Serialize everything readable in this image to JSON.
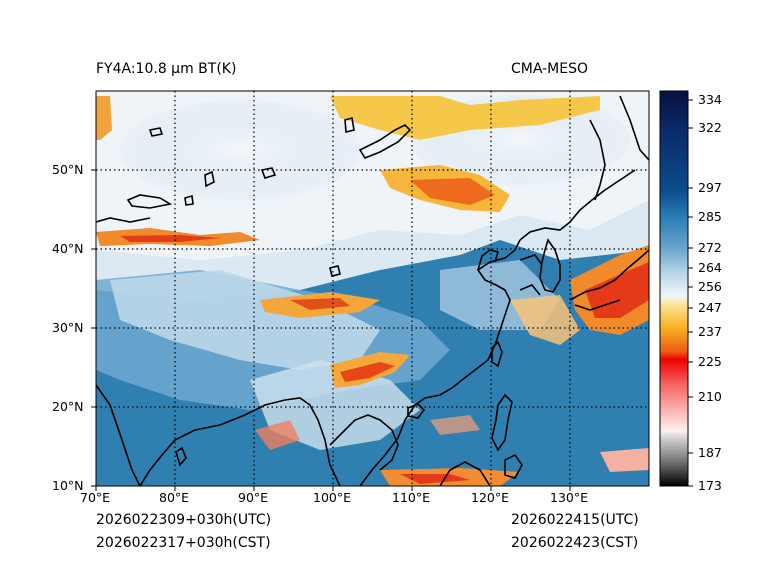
{
  "title_left": "FY4A:10.8 µm BT(K)",
  "title_right": "CMA-MESO",
  "footer": {
    "init_utc": "2026022309+030h(UTC)",
    "init_cst": "2026022317+030h(CST)",
    "valid_utc": "2026022415(UTC)",
    "valid_cst": "2026022423(CST)"
  },
  "axes": {
    "lon_labels": [
      "70°E",
      "80°E",
      "90°E",
      "100°E",
      "110°E",
      "120°E",
      "130°E"
    ],
    "lat_labels": [
      "10°N",
      "20°N",
      "30°N",
      "40°N",
      "50°N"
    ],
    "lon_range": [
      70,
      140
    ],
    "lat_range": [
      10,
      60
    ]
  },
  "colorbar": {
    "labels": [
      "334",
      "322",
      "297",
      "285",
      "272",
      "264",
      "256",
      "247",
      "237",
      "225",
      "210",
      "187",
      "173"
    ],
    "range": [
      173,
      338
    ]
  },
  "colors": {
    "ocean": "#2f7fb0",
    "cloud_white": "#eef4f8",
    "cold_orange": "#f5902a",
    "cold_red": "#e83b1c",
    "warm_blue": "#0a3f7f"
  }
}
